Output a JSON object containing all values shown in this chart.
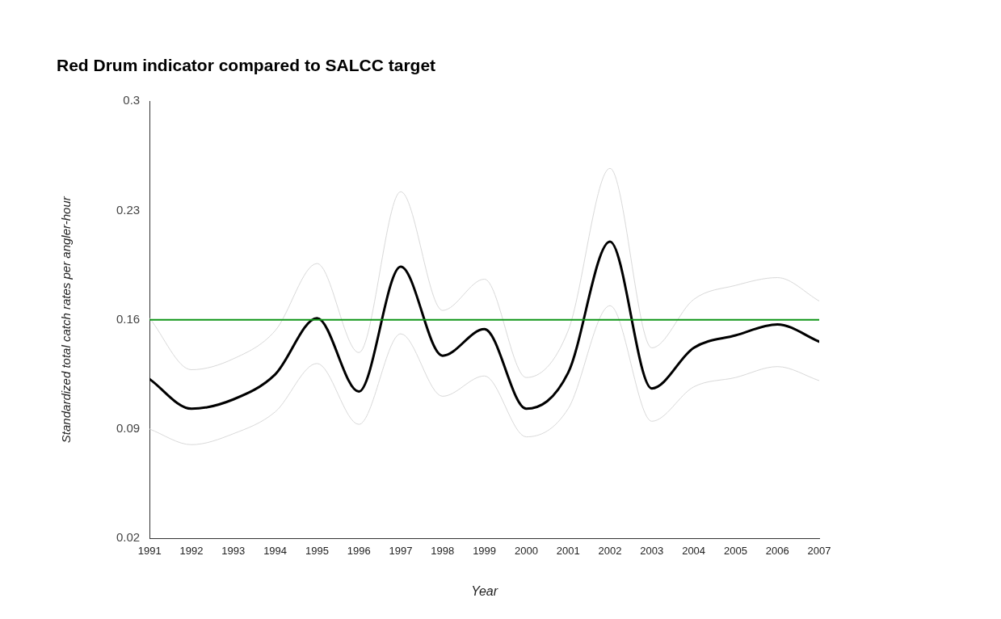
{
  "chart_data": {
    "type": "line",
    "title": "Red Drum indicator compared to SALCC target",
    "xlabel": "Year",
    "ylabel": "Standardized total catch rates per angler-hour",
    "x": [
      1991,
      1992,
      1993,
      1994,
      1995,
      1996,
      1997,
      1998,
      1999,
      2000,
      2001,
      2002,
      2003,
      2004,
      2005,
      2006,
      2007
    ],
    "series": [
      {
        "color": "#d9d9d9",
        "values": [
          0.161,
          0.128,
          0.135,
          0.153,
          0.196,
          0.139,
          0.242,
          0.166,
          0.186,
          0.123,
          0.153,
          0.257,
          0.142,
          0.173,
          0.182,
          0.187,
          0.172
        ]
      },
      {
        "color": "#d9d9d9",
        "values": [
          0.09,
          0.08,
          0.087,
          0.101,
          0.132,
          0.093,
          0.151,
          0.111,
          0.124,
          0.085,
          0.103,
          0.169,
          0.095,
          0.117,
          0.123,
          0.13,
          0.121
        ]
      },
      {
        "color": "#000000",
        "values": [
          0.122,
          0.103,
          0.109,
          0.125,
          0.161,
          0.114,
          0.194,
          0.137,
          0.154,
          0.103,
          0.126,
          0.21,
          0.116,
          0.142,
          0.15,
          0.157,
          0.146
        ]
      }
    ],
    "ref_lines": [
      {
        "axis": "y",
        "value": 0.16,
        "color": "#109618"
      }
    ],
    "xlim": [
      1991,
      2007
    ],
    "xticks": [
      1991,
      1992,
      1993,
      1994,
      1995,
      1996,
      1997,
      1998,
      1999,
      2000,
      2001,
      2002,
      2003,
      2004,
      2005,
      2006,
      2007
    ],
    "ylim": [
      0.02,
      0.3
    ],
    "yticks": [
      0.02,
      0.09,
      0.16,
      0.23,
      0.3
    ],
    "grid": false,
    "legend": false,
    "marker": "none",
    "line_style": "solid"
  }
}
